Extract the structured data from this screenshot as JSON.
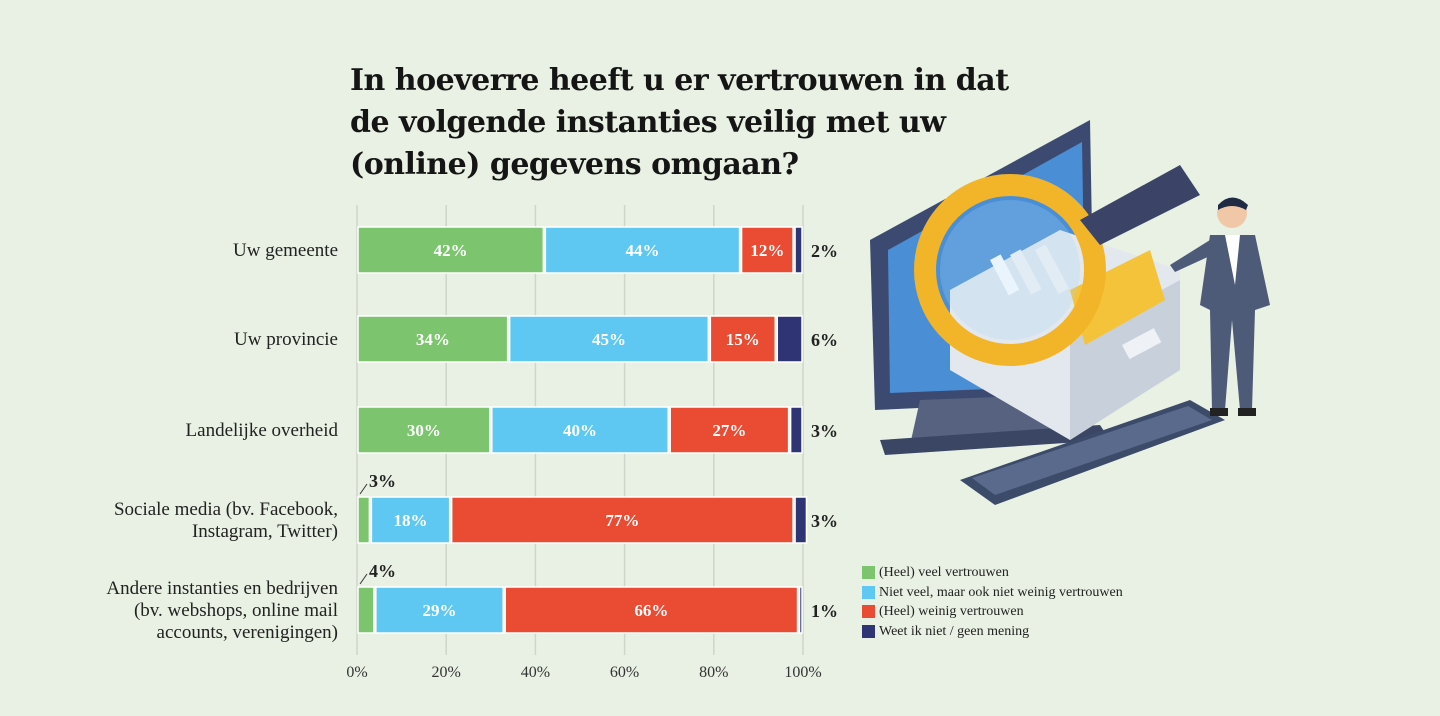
{
  "title": "In hoeverre heeft u er vertrouwen in dat de volgende instanties veilig met uw (online) gegevens omgaan?",
  "colors": {
    "green": "#7cc46e",
    "blue": "#5ec8f2",
    "red": "#ea4b33",
    "navy": "#2f3574",
    "background": "#e8f1e3"
  },
  "chart_data": {
    "type": "bar",
    "orientation": "horizontal-stacked-100",
    "title": "In hoeverre heeft u er vertrouwen in dat de volgende instanties veilig met uw (online) gegevens omgaan?",
    "categories": [
      [
        "Uw gemeente"
      ],
      [
        "Uw provincie"
      ],
      [
        "Landelijke overheid"
      ],
      [
        "Sociale media (bv. Facebook,",
        "Instagram, Twitter)"
      ],
      [
        "Andere instanties en bedrijven",
        "(bv. webshops, online mail",
        "accounts, verenigingen)"
      ]
    ],
    "series": [
      {
        "name": "(Heel) veel vertrouwen",
        "color": "#7cc46e",
        "values": [
          42,
          34,
          30,
          3,
          4
        ]
      },
      {
        "name": "Niet veel, maar ook niet weinig vertrouwen",
        "color": "#5ec8f2",
        "values": [
          44,
          45,
          40,
          18,
          29
        ]
      },
      {
        "name": "(Heel) weinig vertrouwen",
        "color": "#ea4b33",
        "values": [
          12,
          15,
          27,
          77,
          66
        ]
      },
      {
        "name": "Weet ik niet / geen mening",
        "color": "#2f3574",
        "values": [
          2,
          6,
          3,
          3,
          1
        ]
      }
    ],
    "xlim": [
      0,
      100
    ],
    "xticks": [
      "0%",
      "20%",
      "40%",
      "60%",
      "80%",
      "100%"
    ],
    "grid": true,
    "legend": "bottom-right"
  }
}
